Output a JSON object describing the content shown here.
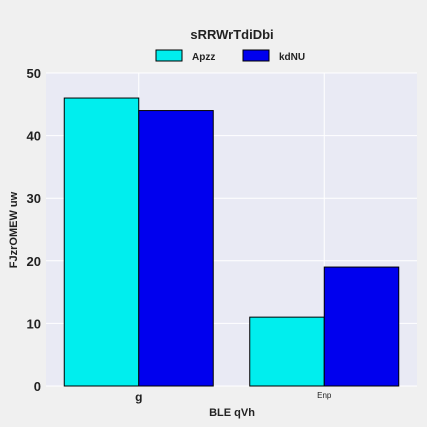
{
  "chart_data": {
    "type": "bar",
    "title": "sRRWrTdiDbi",
    "xlabel": "BLE qVh",
    "ylabel": "FJzrOMEW uw",
    "categories": [
      "g",
      "Enp"
    ],
    "series": [
      {
        "name": "Apzz",
        "values": [
          46,
          11
        ],
        "color": "#00eeee"
      },
      {
        "name": "kdNU",
        "values": [
          44,
          19
        ],
        "color": "#0000ee"
      }
    ],
    "ylim": [
      0,
      50
    ],
    "yticks": [
      "0",
      "10",
      "20",
      "30",
      "40",
      "50"
    ],
    "grid": true,
    "legend_position": "top-center",
    "plot_background": "#e9eaf4",
    "bar_edge_color": "#000000"
  }
}
